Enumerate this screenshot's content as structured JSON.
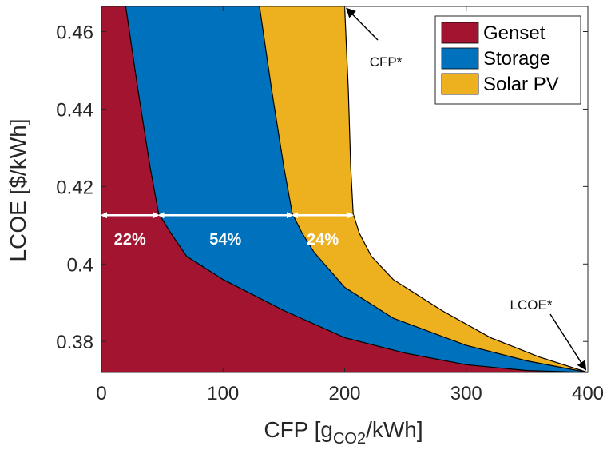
{
  "chart_data": {
    "type": "area",
    "xlabel_main": "CFP [g",
    "xlabel_sub": "CO2",
    "xlabel_end": "/kWh]",
    "ylabel": "LCOE [$/kWh]",
    "xlim": [
      0,
      400
    ],
    "ylim": [
      0.372,
      0.4665
    ],
    "xticks": [
      0,
      100,
      200,
      300,
      400
    ],
    "yticks": [
      0.38,
      0.4,
      0.42,
      0.44,
      0.46
    ],
    "ytick_labels": [
      "0.38",
      "0.4",
      "0.42",
      "0.44",
      "0.46"
    ],
    "grid": false,
    "legend_position": "top-right",
    "series": [
      {
        "name": "Genset",
        "color": "#A2142F",
        "boundary": [
          [
            20,
            0.4665
          ],
          [
            30,
            0.445
          ],
          [
            40,
            0.425
          ],
          [
            47,
            0.413
          ],
          [
            57,
            0.408
          ],
          [
            70,
            0.402
          ],
          [
            100,
            0.396
          ],
          [
            150,
            0.388
          ],
          [
            200,
            0.381
          ],
          [
            250,
            0.377
          ],
          [
            300,
            0.374
          ],
          [
            350,
            0.3725
          ],
          [
            400,
            0.372
          ]
        ]
      },
      {
        "name": "Storage",
        "color": "#0072BD",
        "boundary": [
          [
            130,
            0.4665
          ],
          [
            140,
            0.445
          ],
          [
            150,
            0.425
          ],
          [
            157,
            0.413
          ],
          [
            165,
            0.408
          ],
          [
            175,
            0.403
          ],
          [
            200,
            0.394
          ],
          [
            240,
            0.386
          ],
          [
            300,
            0.379
          ],
          [
            350,
            0.375
          ],
          [
            400,
            0.372
          ]
        ]
      },
      {
        "name": "Solar PV",
        "color": "#EDB120",
        "boundary": [
          [
            200,
            0.4665
          ],
          [
            203,
            0.445
          ],
          [
            205,
            0.425
          ],
          [
            207,
            0.413
          ],
          [
            212,
            0.408
          ],
          [
            222,
            0.402
          ],
          [
            240,
            0.396
          ],
          [
            280,
            0.388
          ],
          [
            320,
            0.381
          ],
          [
            360,
            0.376
          ],
          [
            400,
            0.372
          ]
        ]
      }
    ],
    "range_arrows": [
      {
        "from": 0,
        "to": 47,
        "y": 0.4126,
        "label": "22%"
      },
      {
        "from": 47,
        "to": 157,
        "y": 0.4126,
        "label": "54%"
      },
      {
        "from": 157,
        "to": 207,
        "y": 0.4126,
        "label": "24%"
      }
    ],
    "annotations": [
      {
        "text": "CFP*",
        "point": [
          200,
          0.4665
        ]
      },
      {
        "text": "LCOE*",
        "point": [
          400,
          0.372
        ]
      }
    ]
  }
}
